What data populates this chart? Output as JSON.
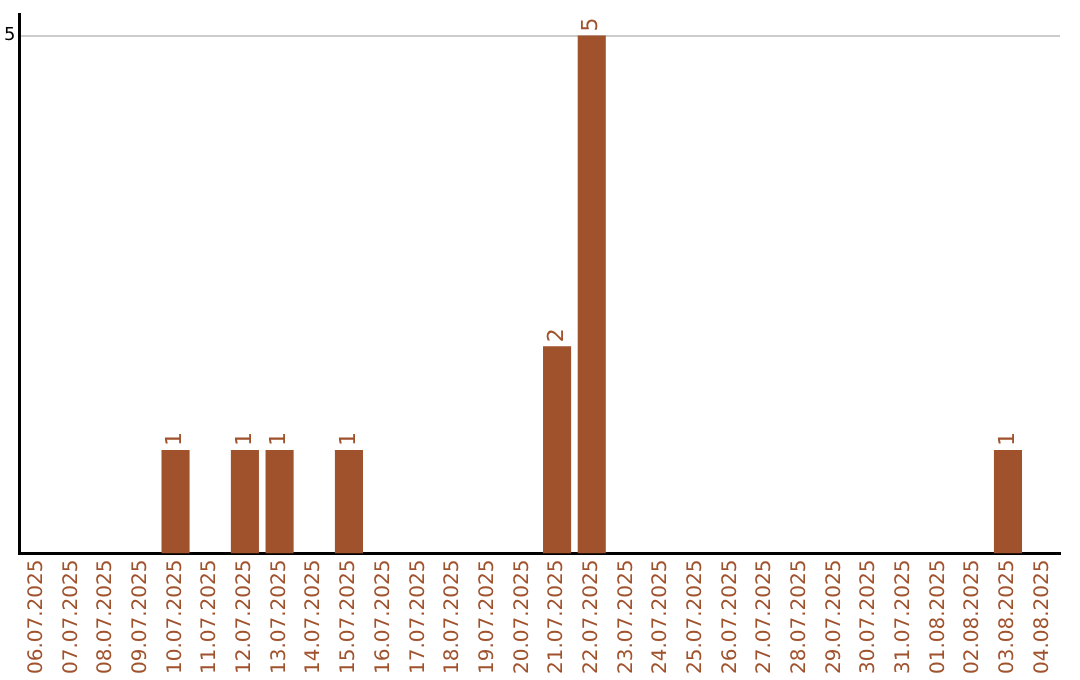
{
  "chart_data": {
    "type": "bar",
    "categories": [
      "06.07.2025",
      "07.07.2025",
      "08.07.2025",
      "09.07.2025",
      "10.07.2025",
      "11.07.2025",
      "12.07.2025",
      "13.07.2025",
      "14.07.2025",
      "15.07.2025",
      "16.07.2025",
      "17.07.2025",
      "18.07.2025",
      "19.07.2025",
      "20.07.2025",
      "21.07.2025",
      "22.07.2025",
      "23.07.2025",
      "24.07.2025",
      "25.07.2025",
      "26.07.2025",
      "27.07.2025",
      "28.07.2025",
      "29.07.2025",
      "30.07.2025",
      "31.07.2025",
      "01.08.2025",
      "02.08.2025",
      "03.08.2025",
      "04.08.2025"
    ],
    "values": [
      0,
      0,
      0,
      0,
      1,
      0,
      1,
      1,
      0,
      1,
      0,
      0,
      0,
      0,
      0,
      2,
      5,
      0,
      0,
      0,
      0,
      0,
      0,
      0,
      0,
      0,
      0,
      0,
      1,
      0
    ],
    "color": "#a0522d",
    "ylim": [
      0,
      5.2
    ],
    "yticks": [
      5
    ],
    "value_labels": [
      null,
      null,
      null,
      null,
      "1",
      null,
      "1",
      "1",
      null,
      "1",
      null,
      null,
      null,
      null,
      null,
      "2",
      "5",
      null,
      null,
      null,
      null,
      null,
      null,
      null,
      null,
      null,
      null,
      null,
      "1",
      null
    ],
    "grid": "y",
    "legend": false
  }
}
